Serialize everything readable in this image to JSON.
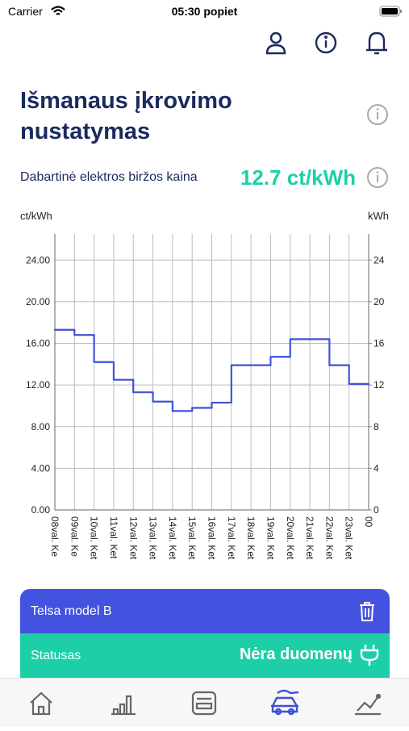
{
  "status_bar": {
    "carrier": "Carrier",
    "time": "05:30 popiet"
  },
  "header": {
    "title": "Išmanaus įkrovimo nustatymas"
  },
  "price": {
    "label": "Dabartinė elektros biržos kaina",
    "value": "12.7 ct/kWh"
  },
  "chart_data": {
    "type": "step",
    "y_label": "ct/kWh",
    "y2_label": "kWh",
    "categories": [
      "08val. Ke",
      "09val. Ke",
      "10val. Ket",
      "11val. Ket",
      "12val. Ket",
      "13val. Ket",
      "14val. Ket",
      "15val. Ket",
      "16val. Ket",
      "17val. Ket",
      "18val. Ket",
      "19val. Ket",
      "20val. Ket",
      "21val. Ket",
      "22val. Ket",
      "23val. Ket",
      "00"
    ],
    "series": [
      {
        "color": "#3f51d8",
        "values": [
          17.3,
          16.8,
          14.2,
          12.5,
          11.3,
          10.4,
          9.5,
          9.8,
          10.3,
          13.9,
          13.9,
          14.7,
          16.4,
          16.4,
          13.9,
          12.1,
          null
        ]
      }
    ],
    "ylim": [
      0,
      26.5
    ],
    "yticks": [
      {
        "value": 0,
        "label": "0.00"
      },
      {
        "value": 4,
        "label": "4.00"
      },
      {
        "value": 8,
        "label": "8.00"
      },
      {
        "value": 12,
        "label": "12.00"
      },
      {
        "value": 16,
        "label": "16.00"
      },
      {
        "value": 20,
        "label": "20.00"
      },
      {
        "value": 24,
        "label": "24.00"
      }
    ],
    "y2lim": [
      0,
      26.5
    ],
    "y2ticks": [
      0,
      4,
      8,
      12,
      16,
      20,
      24
    ],
    "grid": true
  },
  "card": {
    "name": "Telsa model B",
    "status_label": "Statusas",
    "status_value": "Nėra duomenų"
  }
}
